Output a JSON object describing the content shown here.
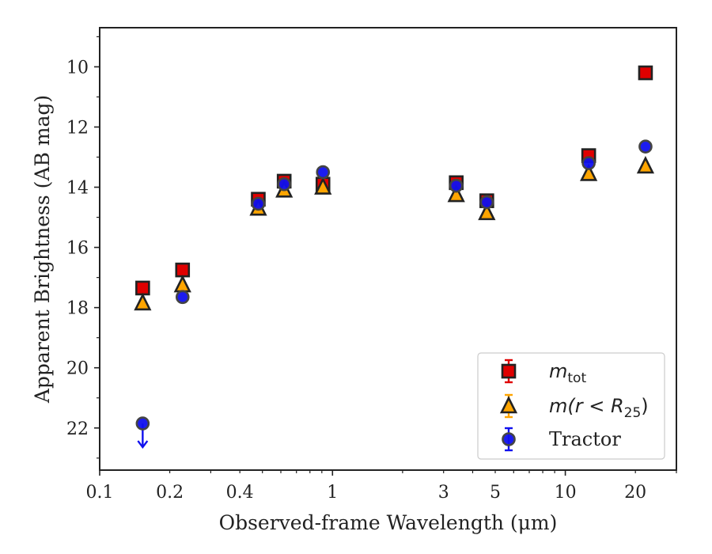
{
  "chart_data": {
    "type": "scatter",
    "title": "",
    "xlabel": "Observed-frame Wavelength (μm)",
    "ylabel": "Apparent Brightness (AB mag)",
    "xscale": "log",
    "xlim": [
      0.1,
      30
    ],
    "ylim": [
      23.4,
      8.7
    ],
    "y_inverted": true,
    "x_ticks": [
      0.1,
      0.2,
      0.4,
      1,
      3,
      5,
      10,
      20
    ],
    "x_tick_labels": [
      "0.1",
      "0.2",
      "0.4",
      "1",
      "3",
      "5",
      "10",
      "20"
    ],
    "y_ticks": [
      10,
      12,
      14,
      16,
      18,
      20,
      22
    ],
    "y_tick_labels": [
      "10",
      "12",
      "14",
      "16",
      "18",
      "20",
      "22"
    ],
    "legend_position": "lower-right",
    "series": [
      {
        "name": "m_tot",
        "legend_label": {
          "base": "m",
          "sub": "tot"
        },
        "marker": "square",
        "color": "#e00000",
        "edge": "#222222",
        "points": [
          {
            "x": 0.153,
            "y": 17.35
          },
          {
            "x": 0.227,
            "y": 16.75
          },
          {
            "x": 0.48,
            "y": 14.4
          },
          {
            "x": 0.62,
            "y": 13.8
          },
          {
            "x": 0.91,
            "y": 13.9
          },
          {
            "x": 3.4,
            "y": 13.85
          },
          {
            "x": 4.6,
            "y": 14.45
          },
          {
            "x": 12.6,
            "y": 12.95
          },
          {
            "x": 22.1,
            "y": 10.2
          }
        ]
      },
      {
        "name": "m(r < R25)",
        "legend_label": {
          "base": "m(r < R",
          "sub": "25",
          "tail": ")"
        },
        "marker": "triangle",
        "color": "#ffa500",
        "edge": "#222222",
        "points": [
          {
            "x": 0.153,
            "y": 17.85
          },
          {
            "x": 0.227,
            "y": 17.25
          },
          {
            "x": 0.48,
            "y": 14.7
          },
          {
            "x": 0.62,
            "y": 14.1
          },
          {
            "x": 0.91,
            "y": 14.0
          },
          {
            "x": 3.4,
            "y": 14.25
          },
          {
            "x": 4.6,
            "y": 14.85
          },
          {
            "x": 12.6,
            "y": 13.55
          },
          {
            "x": 22.1,
            "y": 13.3
          }
        ]
      },
      {
        "name": "Tractor",
        "legend_label": {
          "base": "Tractor"
        },
        "marker": "circle",
        "color": "#1010ee",
        "edge": "#444444",
        "points": [
          {
            "x": 0.153,
            "y": 21.85,
            "upper_limit": true
          },
          {
            "x": 0.227,
            "y": 17.65
          },
          {
            "x": 0.48,
            "y": 14.55
          },
          {
            "x": 0.62,
            "y": 13.9
          },
          {
            "x": 0.91,
            "y": 13.5
          },
          {
            "x": 3.4,
            "y": 13.95
          },
          {
            "x": 4.6,
            "y": 14.5
          },
          {
            "x": 12.6,
            "y": 13.2
          },
          {
            "x": 22.1,
            "y": 12.65
          }
        ]
      }
    ]
  }
}
